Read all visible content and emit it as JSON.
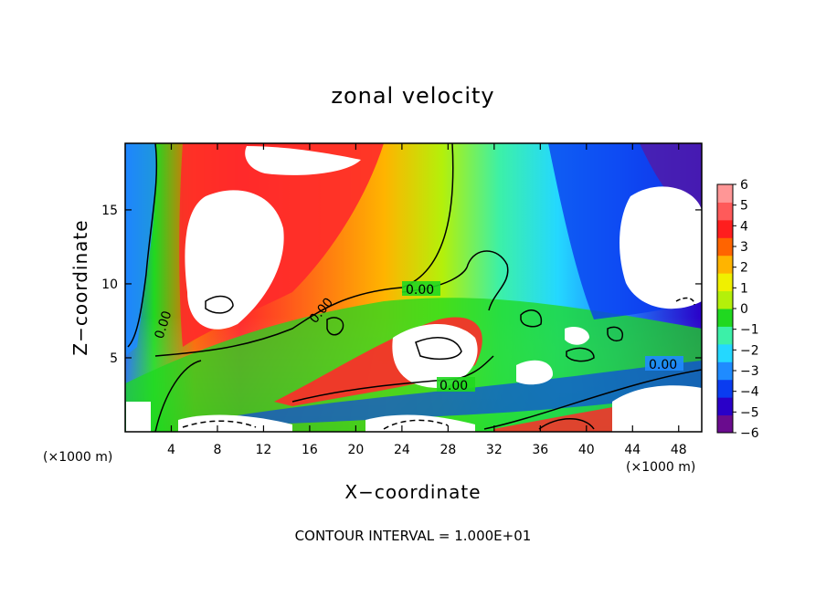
{
  "chart_data": {
    "type": "heatmap",
    "title": "zonal velocity",
    "xlabel": "X−coordinate",
    "ylabel": "Z−coordinate",
    "x_unit": "(×1000 m)",
    "y_unit": "(×1000 m)",
    "xlim": [
      0,
      50
    ],
    "ylim": [
      0,
      19.5
    ],
    "x_ticks": [
      4,
      8,
      12,
      16,
      20,
      24,
      28,
      32,
      36,
      40,
      44,
      48
    ],
    "y_ticks": [
      5,
      10,
      15
    ],
    "colorbar": {
      "min": -6,
      "max": 6,
      "ticks": [
        6,
        5,
        4,
        3,
        2,
        1,
        0,
        -1,
        -2,
        -3,
        -4,
        -5,
        -6
      ],
      "colors": [
        "#6a0c8e",
        "#2a00c8",
        "#0a3cf0",
        "#1f8bff",
        "#24d8ff",
        "#3cf0a8",
        "#20d820",
        "#b4f00a",
        "#f0f000",
        "#ffb400",
        "#ff6400",
        "#ff1e1e",
        "#ff5a5a",
        "#ff9696"
      ]
    },
    "contour_labels": [
      "0.00",
      "0.00",
      "0.00",
      "0.00",
      "0.00"
    ],
    "footer": "CONTOUR INTERVAL = 1.000E+01"
  }
}
